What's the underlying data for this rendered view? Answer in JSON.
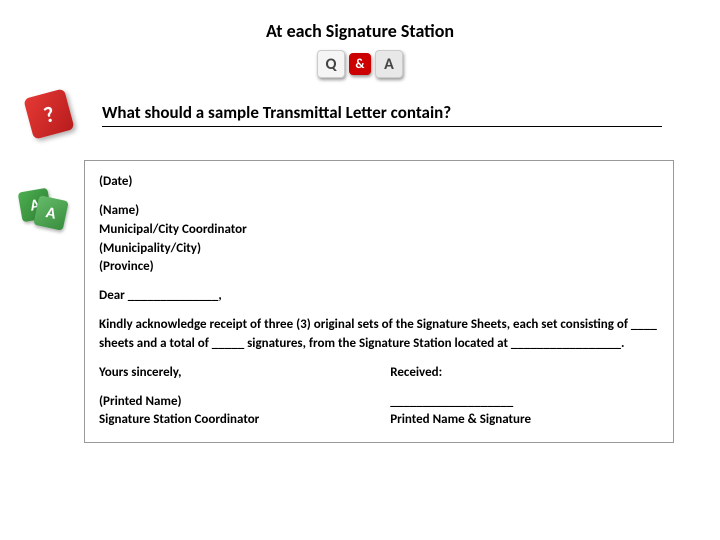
{
  "title": "At each Signature Station",
  "qa_icon": {
    "q": "Q",
    "amp": "&",
    "a": "A"
  },
  "red_die": "?",
  "green_die_back": "A",
  "green_die_front": "A",
  "question": "What should a sample Transmittal Letter contain?",
  "letter": {
    "date": "(Date)",
    "name": "(Name)",
    "role": "Municipal/City Coordinator",
    "muni": "(Municipality/City)",
    "province": "(Province)",
    "salutation": "Dear ______________,",
    "body": "Kindly acknowledge receipt of three (3) original sets of the Signature Sheets, each set consisting of ____ sheets and a total of _____ signatures, from the Signature Station located at _________________.",
    "closing": "Yours sincerely,",
    "received": "Received:",
    "printed": "(Printed Name)",
    "coord": "Signature Station Coordinator",
    "blank_line": "___________________",
    "recv_label": "Printed Name & Signature"
  }
}
